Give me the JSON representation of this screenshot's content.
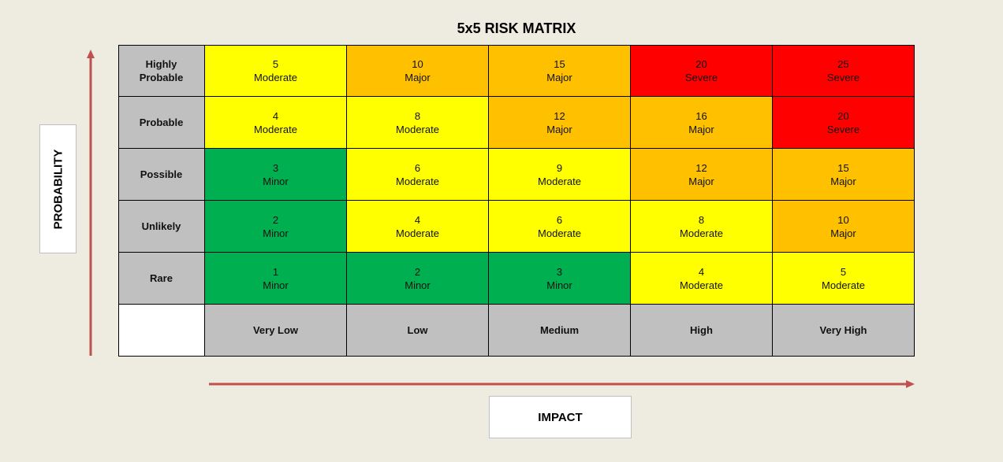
{
  "title": "5x5 RISK MATRIX",
  "axes": {
    "y_label": "PROBABILITY",
    "x_label": "IMPACT"
  },
  "colors": {
    "Minor": "#00b050",
    "Moderate": "#ffff00",
    "Major": "#ffc000",
    "Severe": "#ff0000",
    "header": "#c0c0c0",
    "arrow": "#c0504d"
  },
  "probability_levels": [
    "Highly Probable",
    "Probable",
    "Possible",
    "Unlikely",
    "Rare"
  ],
  "impact_levels": [
    "Very Low",
    "Low",
    "Medium",
    "High",
    "Very High"
  ],
  "matrix": [
    [
      {
        "score": "5",
        "level": "Moderate"
      },
      {
        "score": "10",
        "level": "Major"
      },
      {
        "score": "15",
        "level": "Major"
      },
      {
        "score": "20",
        "level": "Severe"
      },
      {
        "score": "25",
        "level": "Severe"
      }
    ],
    [
      {
        "score": "4",
        "level": "Moderate"
      },
      {
        "score": "8",
        "level": "Moderate"
      },
      {
        "score": "12",
        "level": "Major"
      },
      {
        "score": "16",
        "level": "Major"
      },
      {
        "score": "20",
        "level": "Severe"
      }
    ],
    [
      {
        "score": "3",
        "level": "Minor"
      },
      {
        "score": "6",
        "level": "Moderate"
      },
      {
        "score": "9",
        "level": "Moderate"
      },
      {
        "score": "12",
        "level": "Major"
      },
      {
        "score": "15",
        "level": "Major"
      }
    ],
    [
      {
        "score": "2",
        "level": "Minor"
      },
      {
        "score": "4",
        "level": "Moderate"
      },
      {
        "score": "6",
        "level": "Moderate"
      },
      {
        "score": "8",
        "level": "Moderate"
      },
      {
        "score": "10",
        "level": "Major"
      }
    ],
    [
      {
        "score": "1",
        "level": "Minor"
      },
      {
        "score": "2",
        "level": "Minor"
      },
      {
        "score": "3",
        "level": "Minor"
      },
      {
        "score": "4",
        "level": "Moderate"
      },
      {
        "score": "5",
        "level": "Moderate"
      }
    ]
  ]
}
